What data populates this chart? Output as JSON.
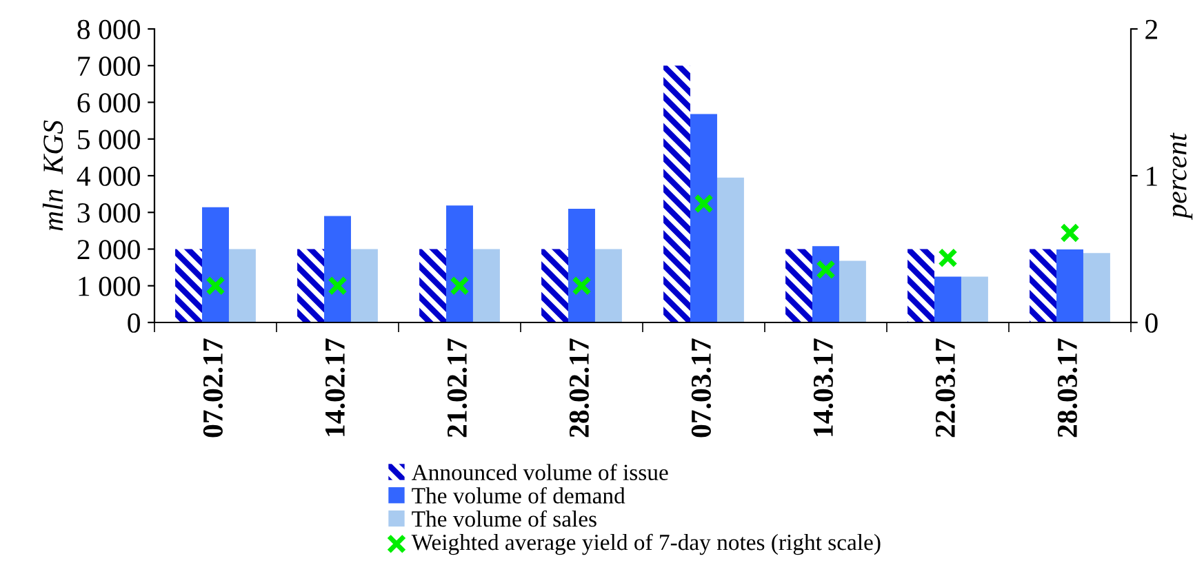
{
  "chart_data": {
    "type": "bar",
    "ylabel": "mln  KGS",
    "y2label": "percent",
    "categories": [
      "07.02.17",
      "14.02.17",
      "21.02.17",
      "28.02.17",
      "07.03.17",
      "14.03.17",
      "22.03.17",
      "28.03.17"
    ],
    "series": [
      {
        "name": "Announced volume of issue",
        "color": "#0000cc",
        "values": [
          2000,
          2000,
          2000,
          2000,
          7000,
          2000,
          2000,
          2000
        ]
      },
      {
        "name": "The volume of demand",
        "color": "#3366ff",
        "values": [
          3140,
          2900,
          3190,
          3100,
          5680,
          2080,
          1250,
          1990
        ]
      },
      {
        "name": "The volume of sales",
        "color": "#a9cbf0",
        "values": [
          2000,
          2000,
          2000,
          2000,
          3950,
          1680,
          1250,
          1890
        ]
      },
      {
        "name": "Weighted average yield of 7-day notes (right scale)",
        "type": "scatter",
        "axis": "y2",
        "color": "#00ee00",
        "marker": "cross",
        "values": [
          0.25,
          0.25,
          0.25,
          0.25,
          0.81,
          0.36,
          0.44,
          0.61
        ]
      }
    ],
    "ylim": [
      0,
      8000
    ],
    "yticks": [
      0,
      {
        "value": 1000,
        "label": "1 000"
      },
      {
        "value": 2000,
        "label": "2 000"
      },
      {
        "value": 3000,
        "label": "3 000"
      },
      {
        "value": 4000,
        "label": "4 000"
      },
      {
        "value": 5000,
        "label": "5 000"
      },
      {
        "value": 6000,
        "label": "6 000"
      },
      {
        "value": 7000,
        "label": "7 000"
      },
      {
        "value": 8000,
        "label": "8 000"
      }
    ],
    "y2lim": [
      0,
      2
    ],
    "y2ticks": [
      0,
      1,
      2
    ],
    "grid": false,
    "legend": "bottom"
  }
}
